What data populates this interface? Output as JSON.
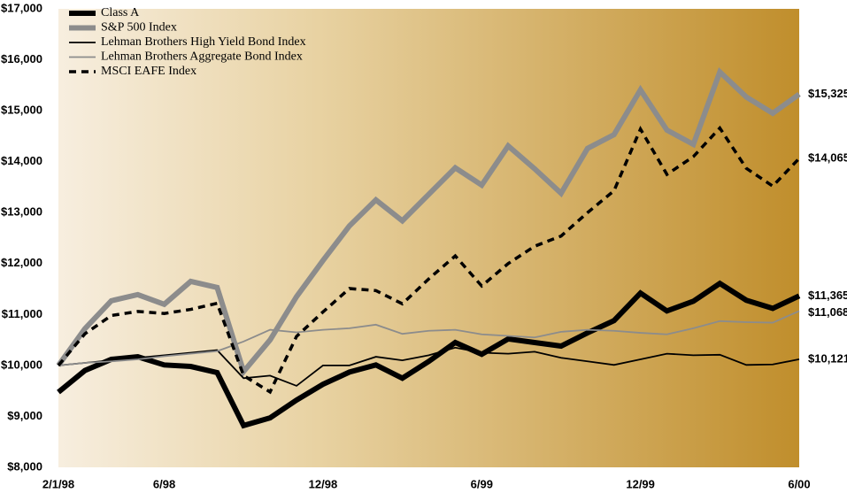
{
  "chart_data": {
    "type": "line",
    "categories": [
      "2/1/98",
      null,
      null,
      null,
      "6/98",
      null,
      null,
      null,
      null,
      null,
      "12/98",
      null,
      null,
      null,
      null,
      null,
      "6/99",
      null,
      null,
      null,
      null,
      null,
      "12/99",
      null,
      null,
      null,
      null,
      null,
      "6/00"
    ],
    "ylim": [
      8000,
      17000
    ],
    "yticks": [
      {
        "value": 8000,
        "label": "$8,000"
      },
      {
        "value": 9000,
        "label": "$9,000"
      },
      {
        "value": 10000,
        "label": "$10,000"
      },
      {
        "value": 11000,
        "label": "$11,000"
      },
      {
        "value": 12000,
        "label": "$12,000"
      },
      {
        "value": 13000,
        "label": "$13,000"
      },
      {
        "value": 14000,
        "label": "$14,000"
      },
      {
        "value": 15000,
        "label": "$15,000"
      },
      {
        "value": 16000,
        "label": "$16,000"
      },
      {
        "value": 17000,
        "label": "$17,000"
      }
    ],
    "series": [
      {
        "name": "Class A",
        "color": "#000000",
        "width": 6,
        "dash": "none",
        "end_label": "$11,365",
        "values": [
          9475,
          9900,
          10120,
          10170,
          10010,
          9980,
          9860,
          8820,
          8970,
          9320,
          9630,
          9870,
          10010,
          9750,
          10080,
          10450,
          10220,
          10520,
          10450,
          10380,
          10640,
          10880,
          11420,
          11070,
          11260,
          11610,
          11280,
          11120,
          11365
        ]
      },
      {
        "name": "S&P 500 Index",
        "color": "#8c8c8c",
        "width": 6,
        "dash": "none",
        "end_label": "$15,325",
        "values": [
          10000,
          10720,
          11270,
          11390,
          11200,
          11650,
          11530,
          9880,
          10500,
          11350,
          12060,
          12740,
          13250,
          12840,
          13360,
          13880,
          13540,
          14310,
          13860,
          13380,
          14260,
          14530,
          15410,
          14620,
          14340,
          15760,
          15270,
          14950,
          15325
        ]
      },
      {
        "name": "Lehman Brothers High Yield Bond Index",
        "color": "#000000",
        "width": 1.8,
        "dash": "none",
        "end_label": "$10,121",
        "values": [
          10000,
          10050,
          10100,
          10150,
          10200,
          10250,
          10300,
          9750,
          9800,
          9600,
          10000,
          10000,
          10170,
          10100,
          10200,
          10350,
          10250,
          10230,
          10270,
          10150,
          10080,
          10010,
          10120,
          10230,
          10200,
          10210,
          10010,
          10020,
          10121
        ]
      },
      {
        "name": "Lehman Brothers Aggregate Bond Index",
        "color": "#8c8c8c",
        "width": 1.8,
        "dash": "none",
        "end_label": "$11,068",
        "values": [
          10000,
          10050,
          10080,
          10120,
          10180,
          10230,
          10280,
          10470,
          10700,
          10650,
          10700,
          10730,
          10800,
          10620,
          10680,
          10700,
          10610,
          10580,
          10550,
          10660,
          10700,
          10680,
          10640,
          10610,
          10730,
          10870,
          10850,
          10840,
          11068
        ]
      },
      {
        "name": "MSCI EAFE Index",
        "color": "#000000",
        "width": 3.5,
        "dash": "8 6",
        "end_label": "$14,065",
        "values": [
          10000,
          10620,
          10980,
          11060,
          11020,
          11100,
          11220,
          9800,
          9480,
          10570,
          11050,
          11510,
          11470,
          11210,
          11700,
          12150,
          11560,
          12000,
          12340,
          12540,
          13000,
          13430,
          14640,
          13750,
          14100,
          14660,
          13870,
          13520,
          14065
        ]
      }
    ]
  }
}
